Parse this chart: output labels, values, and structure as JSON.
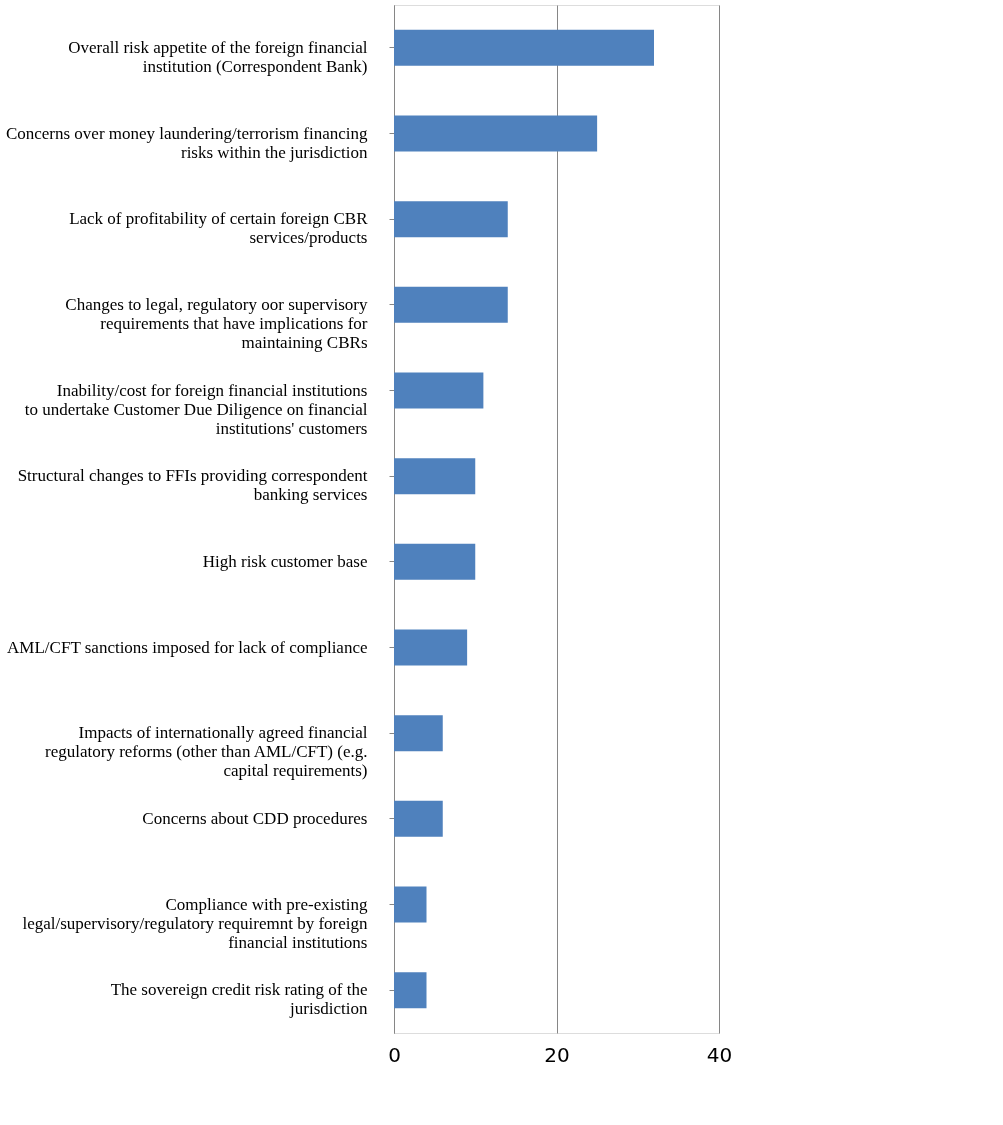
{
  "chart_data": {
    "type": "bar",
    "orientation": "horizontal",
    "categories": [
      "Overall risk appetite of the foreign financial institution (Correspondent Bank)",
      "Concerns over money laundering/terrorism financing risks within the jurisdiction",
      "Lack of profitability of certain foreign CBR services/products",
      "Changes to legal, regulatory oor supervisory requirements that have implications for maintaining CBRs",
      "Inability/cost for foreign financial institutions to undertake Customer Due Diligence on financial institutions' customers",
      "Structural changes to FFIs providing correspondent banking services",
      "High risk customer base",
      "AML/CFT sanctions imposed for lack of compliance",
      "Impacts of internationally agreed financial regulatory reforms (other than AML/CFT) (e.g. capital requirements)",
      "Concerns about CDD procedures",
      "Compliance with pre-existing legal/supervisory/regulatory requiremnt by foreign financial institutions",
      "The sovereign credit risk rating of the jurisdiction"
    ],
    "values": [
      32,
      25,
      14,
      14,
      11,
      10,
      10,
      9,
      6,
      6,
      4,
      4
    ],
    "color": "#4f81bd",
    "xlim": [
      0,
      40
    ],
    "xticks": [
      0,
      20,
      40
    ],
    "grid": "x"
  }
}
